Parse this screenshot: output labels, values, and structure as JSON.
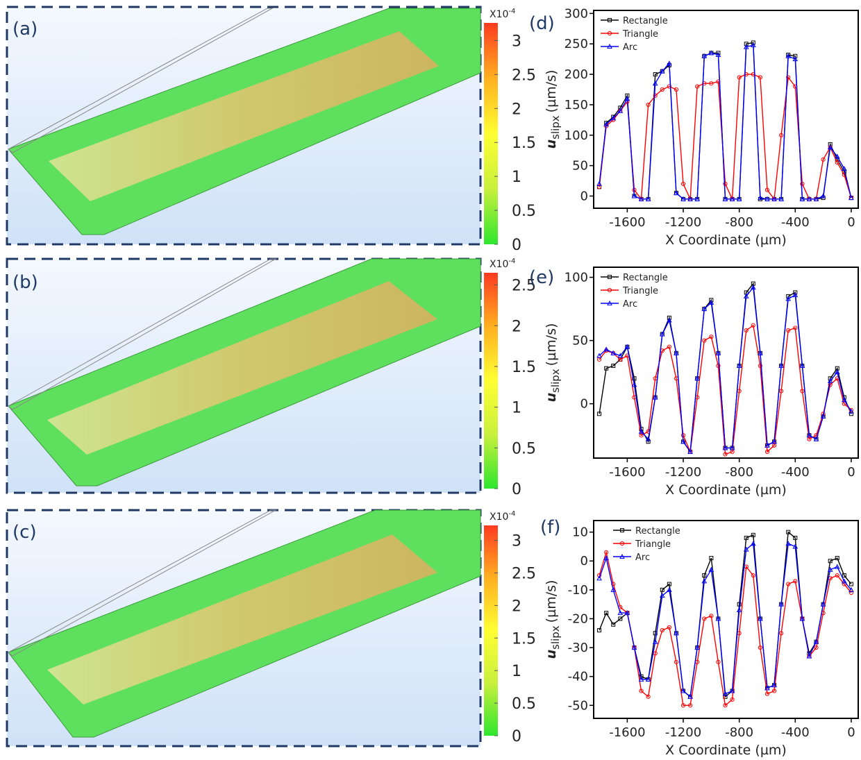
{
  "chart_data": [
    {
      "type": "colorbar",
      "label": "(a)",
      "scale_label": "X10",
      "scale_exponent": "-4",
      "ylim": [
        0,
        3.26
      ],
      "yticks": [
        0,
        0.5,
        1,
        1.5,
        2,
        2.5,
        3
      ],
      "colors": [
        "#2ee62e",
        "#c8f03c",
        "#ffff33",
        "#ffb020",
        "#ff3a20"
      ]
    },
    {
      "type": "colorbar",
      "label": "(b)",
      "scale_label": "X10",
      "scale_exponent": "-4",
      "ylim": [
        0,
        2.65
      ],
      "yticks": [
        0,
        0.5,
        1,
        1.5,
        2,
        2.5
      ],
      "colors": [
        "#2ee62e",
        "#c8f03c",
        "#ffff33",
        "#ffb020",
        "#ff3a20"
      ]
    },
    {
      "type": "colorbar",
      "label": "(c)",
      "scale_label": "X10",
      "scale_exponent": "-4",
      "ylim": [
        0,
        3.23
      ],
      "yticks": [
        0,
        0.5,
        1,
        1.5,
        2,
        2.5,
        3
      ],
      "colors": [
        "#2ee62e",
        "#c8f03c",
        "#ffff33",
        "#ffb020",
        "#ff3a20"
      ]
    },
    {
      "type": "line",
      "label": "(d)",
      "xlabel": "X Coordinate (µm)",
      "ylabel": "u",
      "ylabel_sub": "slipx",
      "ylabel_unit": "(µm/s)",
      "legend": "upper left",
      "xlim": [
        -1840,
        50
      ],
      "ylim": [
        -20,
        305
      ],
      "xticks": [
        -1600,
        -1200,
        -800,
        -400,
        0
      ],
      "yticks": [
        0,
        50,
        100,
        150,
        200,
        250,
        300
      ],
      "x": [
        -1800,
        -1750,
        -1700,
        -1650,
        -1600,
        -1550,
        -1500,
        -1450,
        -1400,
        -1350,
        -1300,
        -1250,
        -1200,
        -1150,
        -1100,
        -1050,
        -1000,
        -950,
        -900,
        -850,
        -800,
        -750,
        -700,
        -650,
        -600,
        -550,
        -500,
        -450,
        -400,
        -350,
        -300,
        -250,
        -200,
        -150,
        -100,
        -50,
        0
      ],
      "series": [
        {
          "name": "Rectangle",
          "color": "#000000",
          "marker": "square",
          "values": [
            15,
            120,
            130,
            145,
            165,
            0,
            -5,
            -5,
            200,
            205,
            215,
            5,
            -5,
            -5,
            -5,
            230,
            235,
            235,
            -5,
            -5,
            -5,
            250,
            252,
            -5,
            -5,
            -5,
            -5,
            232,
            230,
            -5,
            -5,
            -5,
            -3,
            85,
            60,
            40,
            -3
          ]
        },
        {
          "name": "Triangle",
          "color": "#ff0000",
          "marker": "circle",
          "values": [
            15,
            115,
            125,
            140,
            155,
            10,
            -5,
            150,
            165,
            175,
            180,
            175,
            20,
            -5,
            180,
            185,
            185,
            188,
            20,
            -5,
            195,
            200,
            200,
            195,
            10,
            -5,
            100,
            195,
            180,
            20,
            -5,
            -5,
            60,
            80,
            55,
            35,
            -3
          ]
        },
        {
          "name": "Arc",
          "color": "#0000ff",
          "marker": "triangle",
          "values": [
            20,
            118,
            128,
            140,
            160,
            0,
            -5,
            -5,
            185,
            205,
            218,
            5,
            -5,
            -5,
            -5,
            230,
            235,
            232,
            -5,
            -5,
            -5,
            245,
            248,
            -3,
            -5,
            -5,
            -5,
            230,
            225,
            -5,
            -5,
            -5,
            0,
            80,
            65,
            45,
            -3
          ]
        }
      ]
    },
    {
      "type": "line",
      "label": "(e)",
      "xlabel": "X Coordinate (µm)",
      "ylabel": "u",
      "ylabel_sub": "slipx",
      "ylabel_unit": "(µm/s)",
      "legend": "upper left",
      "xlim": [
        -1840,
        50
      ],
      "ylim": [
        -43,
        108
      ],
      "xticks": [
        -1600,
        -1200,
        -800,
        -400,
        0
      ],
      "yticks": [
        0,
        50,
        100
      ],
      "x": [
        -1800,
        -1750,
        -1700,
        -1650,
        -1600,
        -1550,
        -1500,
        -1450,
        -1400,
        -1350,
        -1300,
        -1250,
        -1200,
        -1150,
        -1100,
        -1050,
        -1000,
        -950,
        -900,
        -850,
        -800,
        -750,
        -700,
        -650,
        -600,
        -550,
        -500,
        -450,
        -400,
        -350,
        -300,
        -250,
        -200,
        -150,
        -100,
        -50,
        0
      ],
      "series": [
        {
          "name": "Rectangle",
          "color": "#000000",
          "marker": "square",
          "values": [
            -8,
            28,
            30,
            35,
            45,
            20,
            -20,
            -30,
            5,
            55,
            68,
            40,
            -30,
            -38,
            20,
            75,
            82,
            40,
            -35,
            -35,
            30,
            88,
            95,
            40,
            -33,
            -30,
            30,
            85,
            88,
            30,
            -25,
            -28,
            -10,
            20,
            28,
            5,
            -8
          ]
        },
        {
          "name": "Triangle",
          "color": "#ff0000",
          "marker": "circle",
          "values": [
            35,
            42,
            40,
            35,
            38,
            5,
            -25,
            -22,
            20,
            42,
            45,
            20,
            -25,
            -38,
            5,
            50,
            53,
            30,
            -40,
            -38,
            10,
            58,
            62,
            30,
            -38,
            -33,
            10,
            58,
            60,
            10,
            -28,
            -25,
            -8,
            15,
            20,
            0,
            -5
          ]
        },
        {
          "name": "Arc",
          "color": "#0000ff",
          "marker": "triangle",
          "values": [
            38,
            43,
            40,
            38,
            45,
            15,
            -22,
            -28,
            5,
            55,
            66,
            40,
            -30,
            -38,
            20,
            75,
            80,
            40,
            -35,
            -35,
            30,
            85,
            92,
            40,
            -33,
            -30,
            30,
            83,
            86,
            30,
            -25,
            -28,
            -10,
            18,
            25,
            3,
            -6
          ]
        }
      ]
    },
    {
      "type": "line",
      "label": "(f)",
      "xlabel": "X Coordinate (µm)",
      "ylabel": "u",
      "ylabel_sub": "slipx",
      "ylabel_unit": "(µm/s)",
      "legend": "upper left",
      "xlim": [
        -1840,
        50
      ],
      "ylim": [
        -54.5,
        14
      ],
      "xticks": [
        -1600,
        -1200,
        -800,
        -400,
        0
      ],
      "yticks": [
        -50,
        -40,
        -30,
        -20,
        -10,
        0,
        10
      ],
      "x": [
        -1800,
        -1750,
        -1700,
        -1650,
        -1600,
        -1550,
        -1500,
        -1450,
        -1400,
        -1350,
        -1300,
        -1250,
        -1200,
        -1150,
        -1100,
        -1050,
        -1000,
        -950,
        -900,
        -850,
        -800,
        -750,
        -700,
        -650,
        -600,
        -550,
        -500,
        -450,
        -400,
        -350,
        -300,
        -250,
        -200,
        -150,
        -100,
        -50,
        0
      ],
      "series": [
        {
          "name": "Rectangle",
          "color": "#000000",
          "marker": "square",
          "values": [
            -24,
            -18,
            -22,
            -20,
            -18,
            -30,
            -40,
            -41,
            -25,
            -10,
            -8,
            -25,
            -45,
            -47,
            -30,
            -5,
            1,
            -20,
            -47,
            -45,
            -15,
            8,
            9,
            -20,
            -44,
            -43,
            -15,
            10,
            8,
            -20,
            -32,
            -28,
            -15,
            0,
            1,
            -5,
            -8
          ]
        },
        {
          "name": "Triangle",
          "color": "#ff0000",
          "marker": "circle",
          "values": [
            -5,
            3,
            -8,
            -16,
            -18,
            -30,
            -45,
            -47,
            -32,
            -24,
            -23,
            -35,
            -50,
            -50,
            -35,
            -20,
            -19,
            -35,
            -50,
            -48,
            -25,
            -2,
            -5,
            -30,
            -46,
            -45,
            -25,
            -8,
            -7,
            -20,
            -33,
            -30,
            -18,
            -6,
            -5,
            -8,
            -11
          ]
        },
        {
          "name": "Arc",
          "color": "#0000ff",
          "marker": "triangle",
          "values": [
            -6,
            1,
            -10,
            -18,
            -18,
            -30,
            -41,
            -41,
            -28,
            -12,
            -10,
            -25,
            -45,
            -47,
            -30,
            -7,
            -3,
            -20,
            -46,
            -45,
            -17,
            4,
            6,
            -20,
            -44,
            -43,
            -15,
            6,
            5,
            -20,
            -33,
            -28,
            -15,
            -3,
            -2,
            -7,
            -10
          ]
        }
      ]
    }
  ]
}
